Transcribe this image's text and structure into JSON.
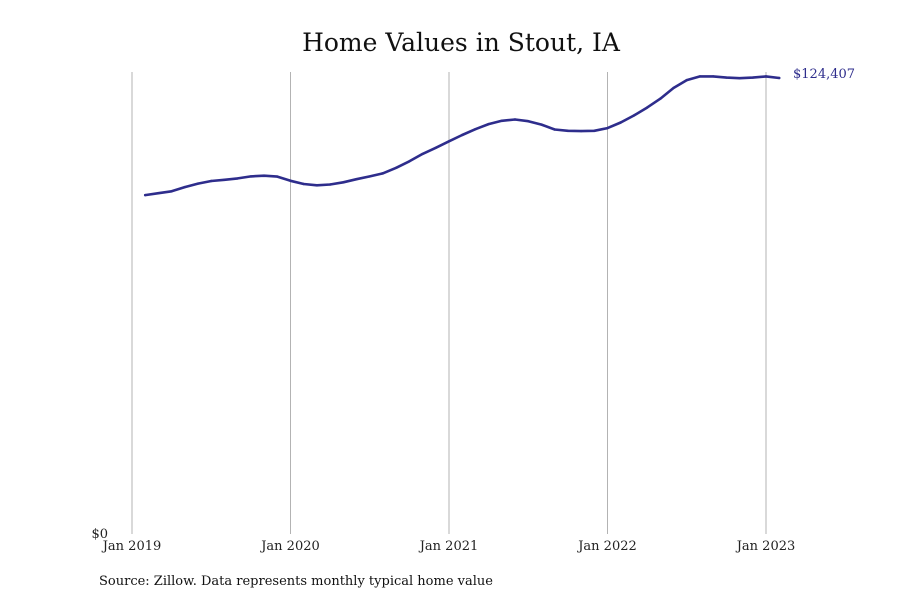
{
  "colors": {
    "line": "#2e2d8c",
    "grid": "#b3b3b3",
    "text": "#111111"
  },
  "source": "Source: Zillow. Data represents monthly typical home value",
  "chart_data": {
    "type": "line",
    "title": "Home Values in Stout, IA",
    "xlabel": "",
    "ylabel": "",
    "x_tick_labels": [
      "Jan 2019",
      "Jan 2020",
      "Jan 2021",
      "Jan 2022",
      "Jan 2023"
    ],
    "y_tick_labels": [
      "$0"
    ],
    "ylim": [
      0,
      124407
    ],
    "xlim": [
      "2019-01",
      "2023-06"
    ],
    "grid": "vertical",
    "end_label": "$124,407",
    "series": [
      {
        "x": [
          "2019-02",
          "2019-03",
          "2019-04",
          "2019-05",
          "2019-06",
          "2019-07",
          "2019-08",
          "2019-09",
          "2019-10",
          "2019-11",
          "2019-12",
          "2020-01",
          "2020-02",
          "2020-03",
          "2020-04",
          "2020-05",
          "2020-06",
          "2020-07",
          "2020-08",
          "2020-09",
          "2020-10",
          "2020-11",
          "2020-12",
          "2021-01",
          "2021-02",
          "2021-03",
          "2021-04",
          "2021-05",
          "2021-06",
          "2021-07",
          "2021-08",
          "2021-09",
          "2021-10",
          "2021-11",
          "2021-12",
          "2022-01",
          "2022-02",
          "2022-03",
          "2022-04",
          "2022-05",
          "2022-06",
          "2022-07",
          "2022-08",
          "2022-09",
          "2022-10",
          "2022-11",
          "2022-12",
          "2023-01",
          "2023-02"
        ],
        "values": [
          92450,
          92980,
          93500,
          94630,
          95590,
          96300,
          96630,
          97010,
          97560,
          97750,
          97510,
          96360,
          95480,
          95120,
          95350,
          95950,
          96790,
          97570,
          98400,
          99920,
          101690,
          103700,
          105370,
          107140,
          108850,
          110440,
          111830,
          112730,
          113090,
          112620,
          111700,
          110360,
          109990,
          109930,
          109990,
          110740,
          112270,
          114170,
          116330,
          118770,
          121690,
          123830,
          124830,
          124830,
          124520,
          124340,
          124520,
          124830,
          124407
        ]
      }
    ]
  }
}
